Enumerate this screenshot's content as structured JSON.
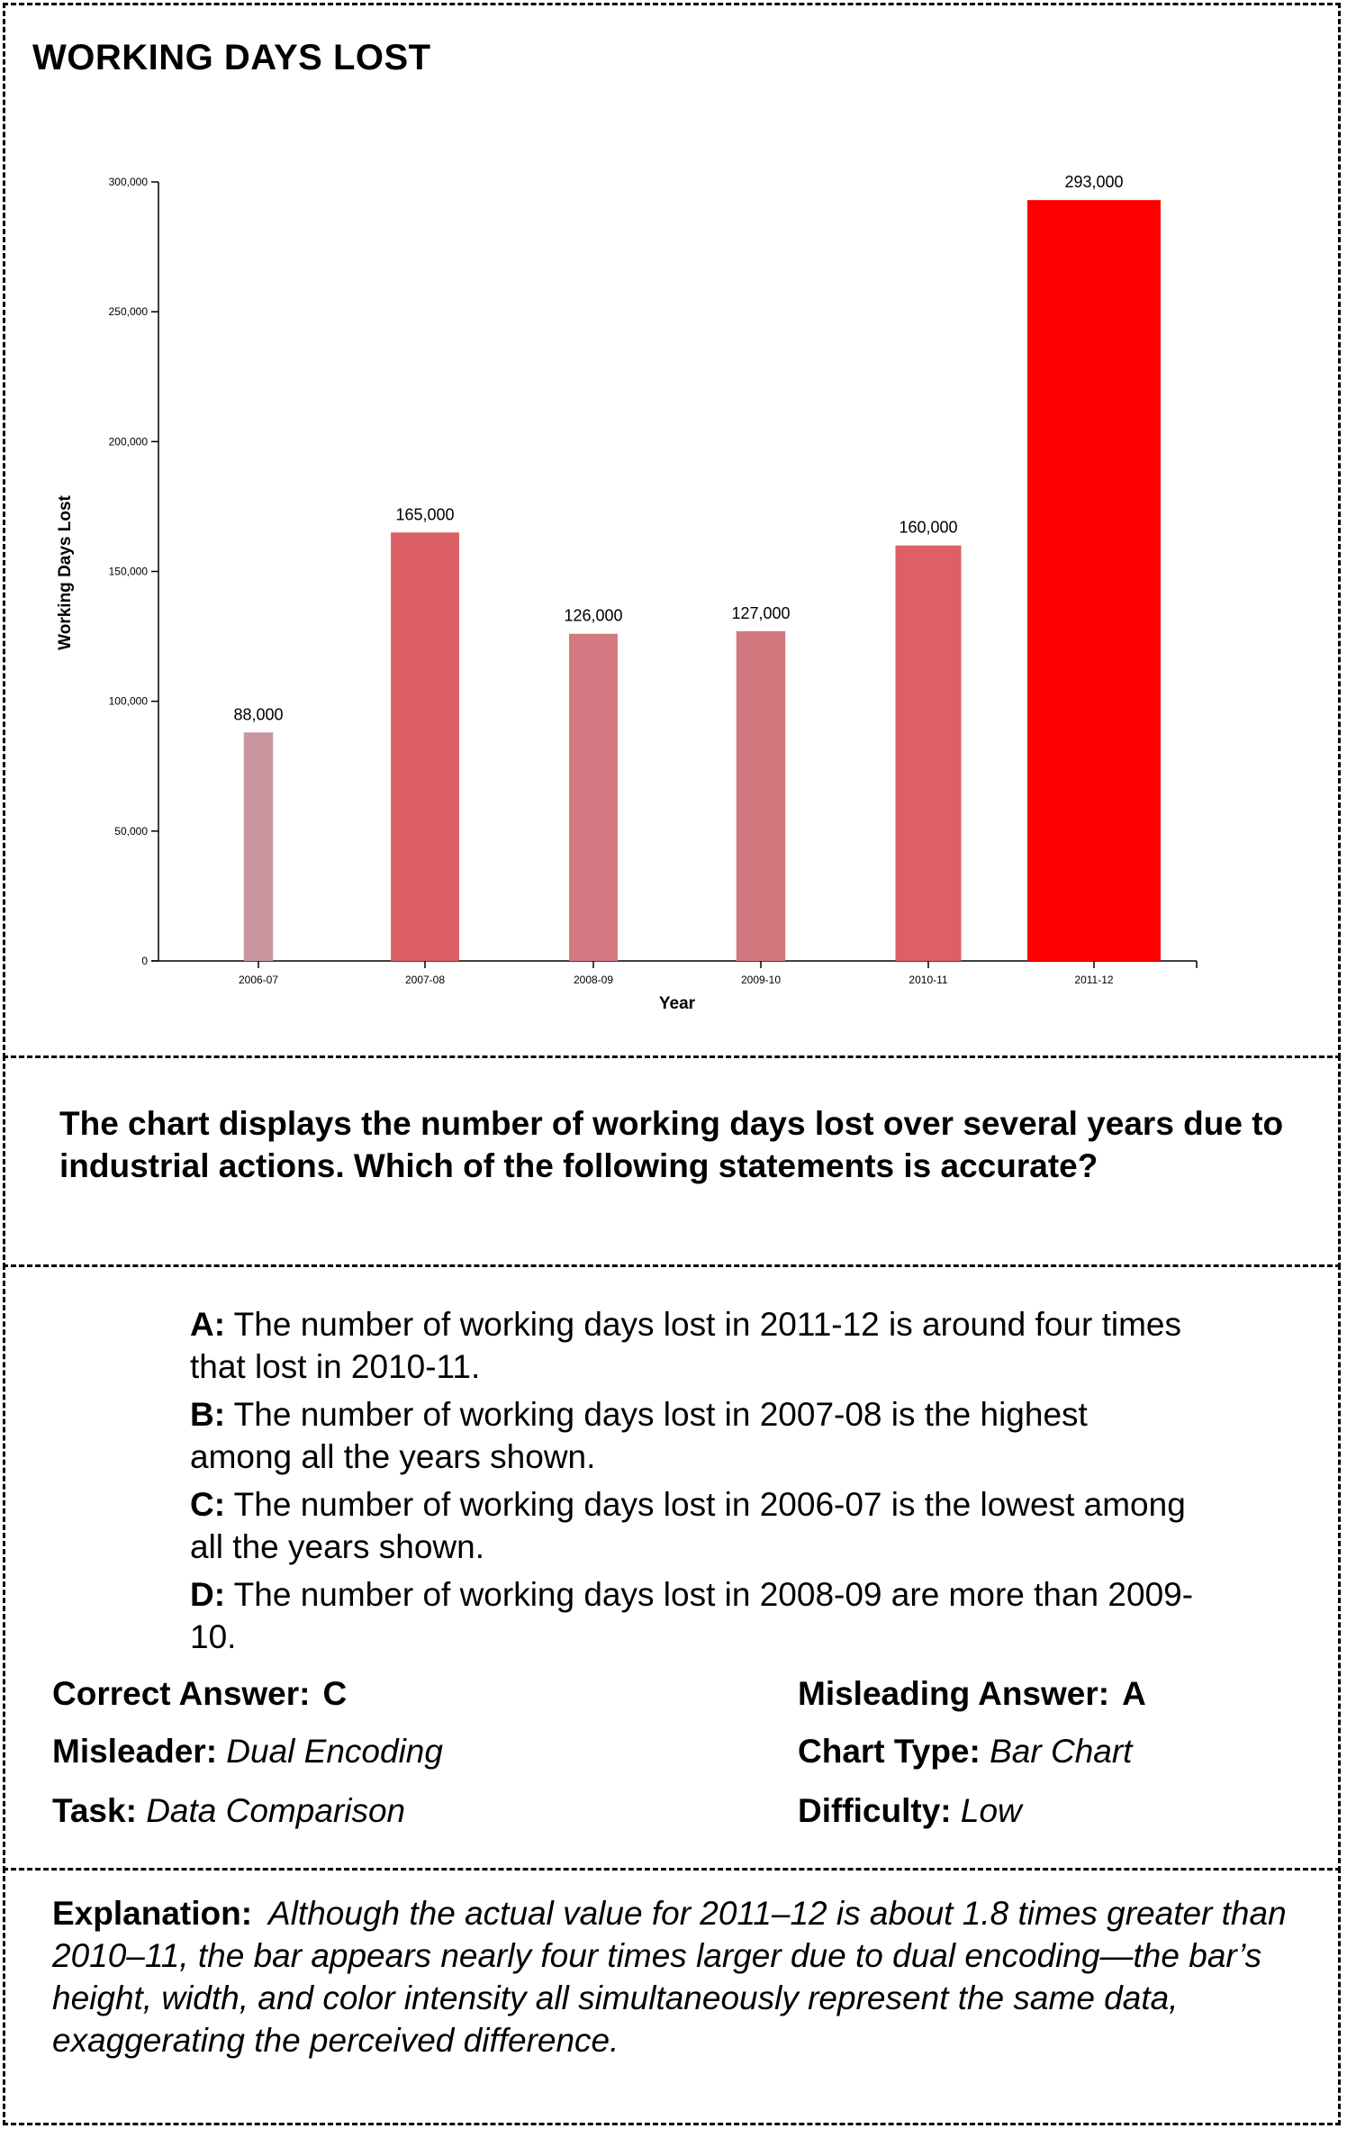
{
  "chart_data": {
    "type": "bar",
    "title": "WORKING DAYS LOST",
    "xlabel": "Year",
    "ylabel": "Working Days Lost",
    "categories": [
      "2006-07",
      "2007-08",
      "2008-09",
      "2009-10",
      "2010-11",
      "2011-12"
    ],
    "values": [
      88000,
      165000,
      126000,
      127000,
      160000,
      293000
    ],
    "value_labels": [
      "88,000",
      "165,000",
      "126,000",
      "127,000",
      "160,000",
      "293,000"
    ],
    "ylim": [
      0,
      300000
    ],
    "yticks": [
      0,
      50000,
      100000,
      150000,
      200000,
      250000,
      300000
    ],
    "ytick_labels": [
      "0",
      "50,000",
      "100,000",
      "150,000",
      "200,000",
      "250,000",
      "300,000"
    ],
    "bar_colors": [
      "#c8959f",
      "#dc5f66",
      "#d27981",
      "#d3787f",
      "#de5f66",
      "#ff0000"
    ],
    "grid": false,
    "legend": "none"
  },
  "question": "The chart displays the number of working days lost over several years due to industrial actions.  Which of the following statements is accurate?",
  "options": [
    {
      "key": "A:",
      "text": "The number of working days lost in 2011-12 is around four times that lost in 2010-11."
    },
    {
      "key": "B:",
      "text": "The number of working days lost in 2007-08 is the highest among all the years shown."
    },
    {
      "key": "C:",
      "text": "The number of working days lost in 2006-07 is the lowest among all the years shown."
    },
    {
      "key": "D:",
      "text": "The number of working days lost in 2008-09 are more than 2009-10."
    }
  ],
  "meta": {
    "correct_label": "Correct Answer:",
    "correct_value": "C",
    "misleading_label": "Misleading Answer:",
    "misleading_value": "A",
    "misleader_label": "Misleader:",
    "misleader_value": "Dual Encoding",
    "chart_type_label": "Chart Type:",
    "chart_type_value": "Bar Chart",
    "task_label": "Task:",
    "task_value": "Data Comparison",
    "difficulty_label": "Difficulty:",
    "difficulty_value": "Low"
  },
  "explanation": {
    "label": "Explanation:",
    "text": "Although the actual value for 2011–12 is about 1.8 times greater than 2010–11, the bar appears nearly four times larger due to dual encoding—the bar’s height, width, and color intensity all simultaneously represent the same data, exaggerating the perceived difference."
  }
}
